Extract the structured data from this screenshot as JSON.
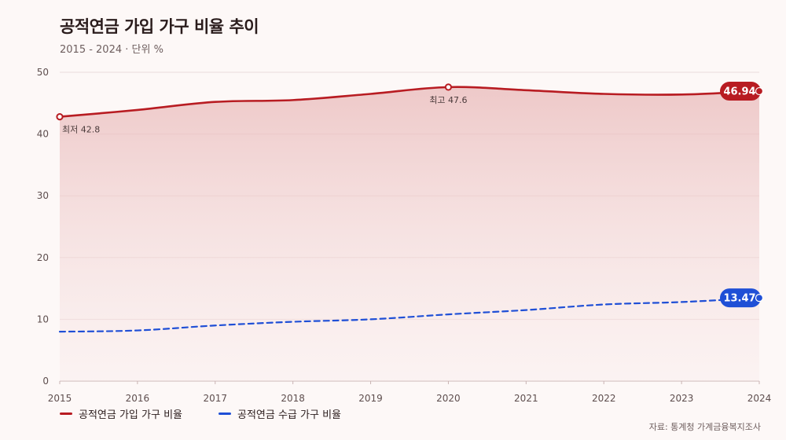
{
  "header": {
    "title": "공적연금 가입 가구 비율 추이",
    "subtitle": "2015 - 2024 · 단위 %"
  },
  "source": "자료: 통계청 가계금융복지조사",
  "colors": {
    "series1": "#b81c22",
    "series2": "#1f4fd6",
    "grid": "#ecdcdc",
    "background": "#fdf8f7"
  },
  "chart_data": {
    "type": "line",
    "title": "공적연금 가입 가구 비율 추이",
    "subtitle": "2015 - 2024 · 단위 %",
    "x": [
      "2015",
      "2016",
      "2017",
      "2018",
      "2019",
      "2020",
      "2021",
      "2022",
      "2023",
      "2024"
    ],
    "ylim": [
      0,
      50
    ],
    "yticks": [
      "0",
      "10",
      "20",
      "30",
      "40",
      "50"
    ],
    "grid": true,
    "legend_position": "bottom-left",
    "series": [
      {
        "name": "공적연금 가입 가구 비율",
        "color": "#b81c22",
        "style": "solid",
        "area": true,
        "values": [
          42.8,
          43.9,
          45.2,
          45.5,
          46.5,
          47.6,
          47.1,
          46.5,
          46.4,
          46.94
        ]
      },
      {
        "name": "공적연금 수급 가구 비율",
        "color": "#1f4fd6",
        "style": "dashed",
        "area": false,
        "values": [
          8.0,
          8.2,
          9.0,
          9.6,
          10.0,
          10.8,
          11.5,
          12.4,
          12.8,
          13.47
        ]
      }
    ],
    "annotations": [
      {
        "series": 0,
        "index": 0,
        "text": "최저 42.8",
        "position": "below"
      },
      {
        "series": 0,
        "index": 5,
        "text": "최고 47.6",
        "position": "below"
      }
    ],
    "end_labels": [
      {
        "series": 0,
        "text": "46.94"
      },
      {
        "series": 1,
        "text": "13.47"
      }
    ]
  }
}
